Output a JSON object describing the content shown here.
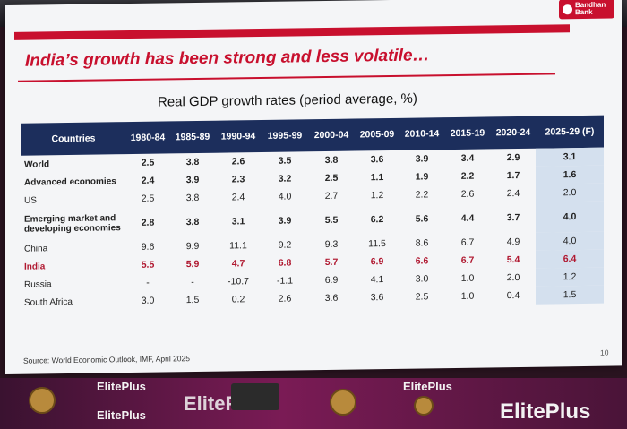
{
  "logo": {
    "line1": "Bandhan",
    "line2": "Bank"
  },
  "title": "India’s growth has been strong and less volatile…",
  "subtitle": "Real GDP growth rates (period average, %)",
  "table": {
    "headers": [
      "Countries",
      "1980-84",
      "1985-89",
      "1990-94",
      "1995-99",
      "2000-04",
      "2005-09",
      "2010-14",
      "2015-19",
      "2020-24",
      "2025-29 (F)"
    ],
    "rows": [
      {
        "country": "World",
        "values": [
          "2.5",
          "3.8",
          "2.6",
          "3.5",
          "3.8",
          "3.6",
          "3.9",
          "3.4",
          "2.9",
          "3.1"
        ]
      },
      {
        "country": "Advanced economies",
        "values": [
          "2.4",
          "3.9",
          "2.3",
          "3.2",
          "2.5",
          "1.1",
          "1.9",
          "2.2",
          "1.7",
          "1.6"
        ]
      },
      {
        "country": "US",
        "values": [
          "2.5",
          "3.8",
          "2.4",
          "4.0",
          "2.7",
          "1.2",
          "2.2",
          "2.6",
          "2.4",
          "2.0"
        ]
      },
      {
        "country": "Emerging market and developing economies",
        "values": [
          "2.8",
          "3.8",
          "3.1",
          "3.9",
          "5.5",
          "6.2",
          "5.6",
          "4.4",
          "3.7",
          "4.0"
        ]
      },
      {
        "country": "China",
        "values": [
          "9.6",
          "9.9",
          "11.1",
          "9.2",
          "9.3",
          "11.5",
          "8.6",
          "6.7",
          "4.9",
          "4.0"
        ]
      },
      {
        "country": "India",
        "values": [
          "5.5",
          "5.9",
          "4.7",
          "6.8",
          "5.7",
          "6.9",
          "6.6",
          "6.7",
          "5.4",
          "6.4"
        ]
      },
      {
        "country": "Russia",
        "values": [
          "-",
          "-",
          "-10.7",
          "-1.1",
          "6.9",
          "4.1",
          "3.0",
          "1.0",
          "2.0",
          "1.2"
        ]
      },
      {
        "country": "South Africa",
        "values": [
          "3.0",
          "1.5",
          "0.2",
          "2.6",
          "3.6",
          "3.6",
          "2.5",
          "1.0",
          "0.4",
          "1.5"
        ]
      }
    ]
  },
  "source": "Source: World Economic Outlook, IMF, April 2025",
  "page_number": "10",
  "stage_brand": "ElitePlus"
}
